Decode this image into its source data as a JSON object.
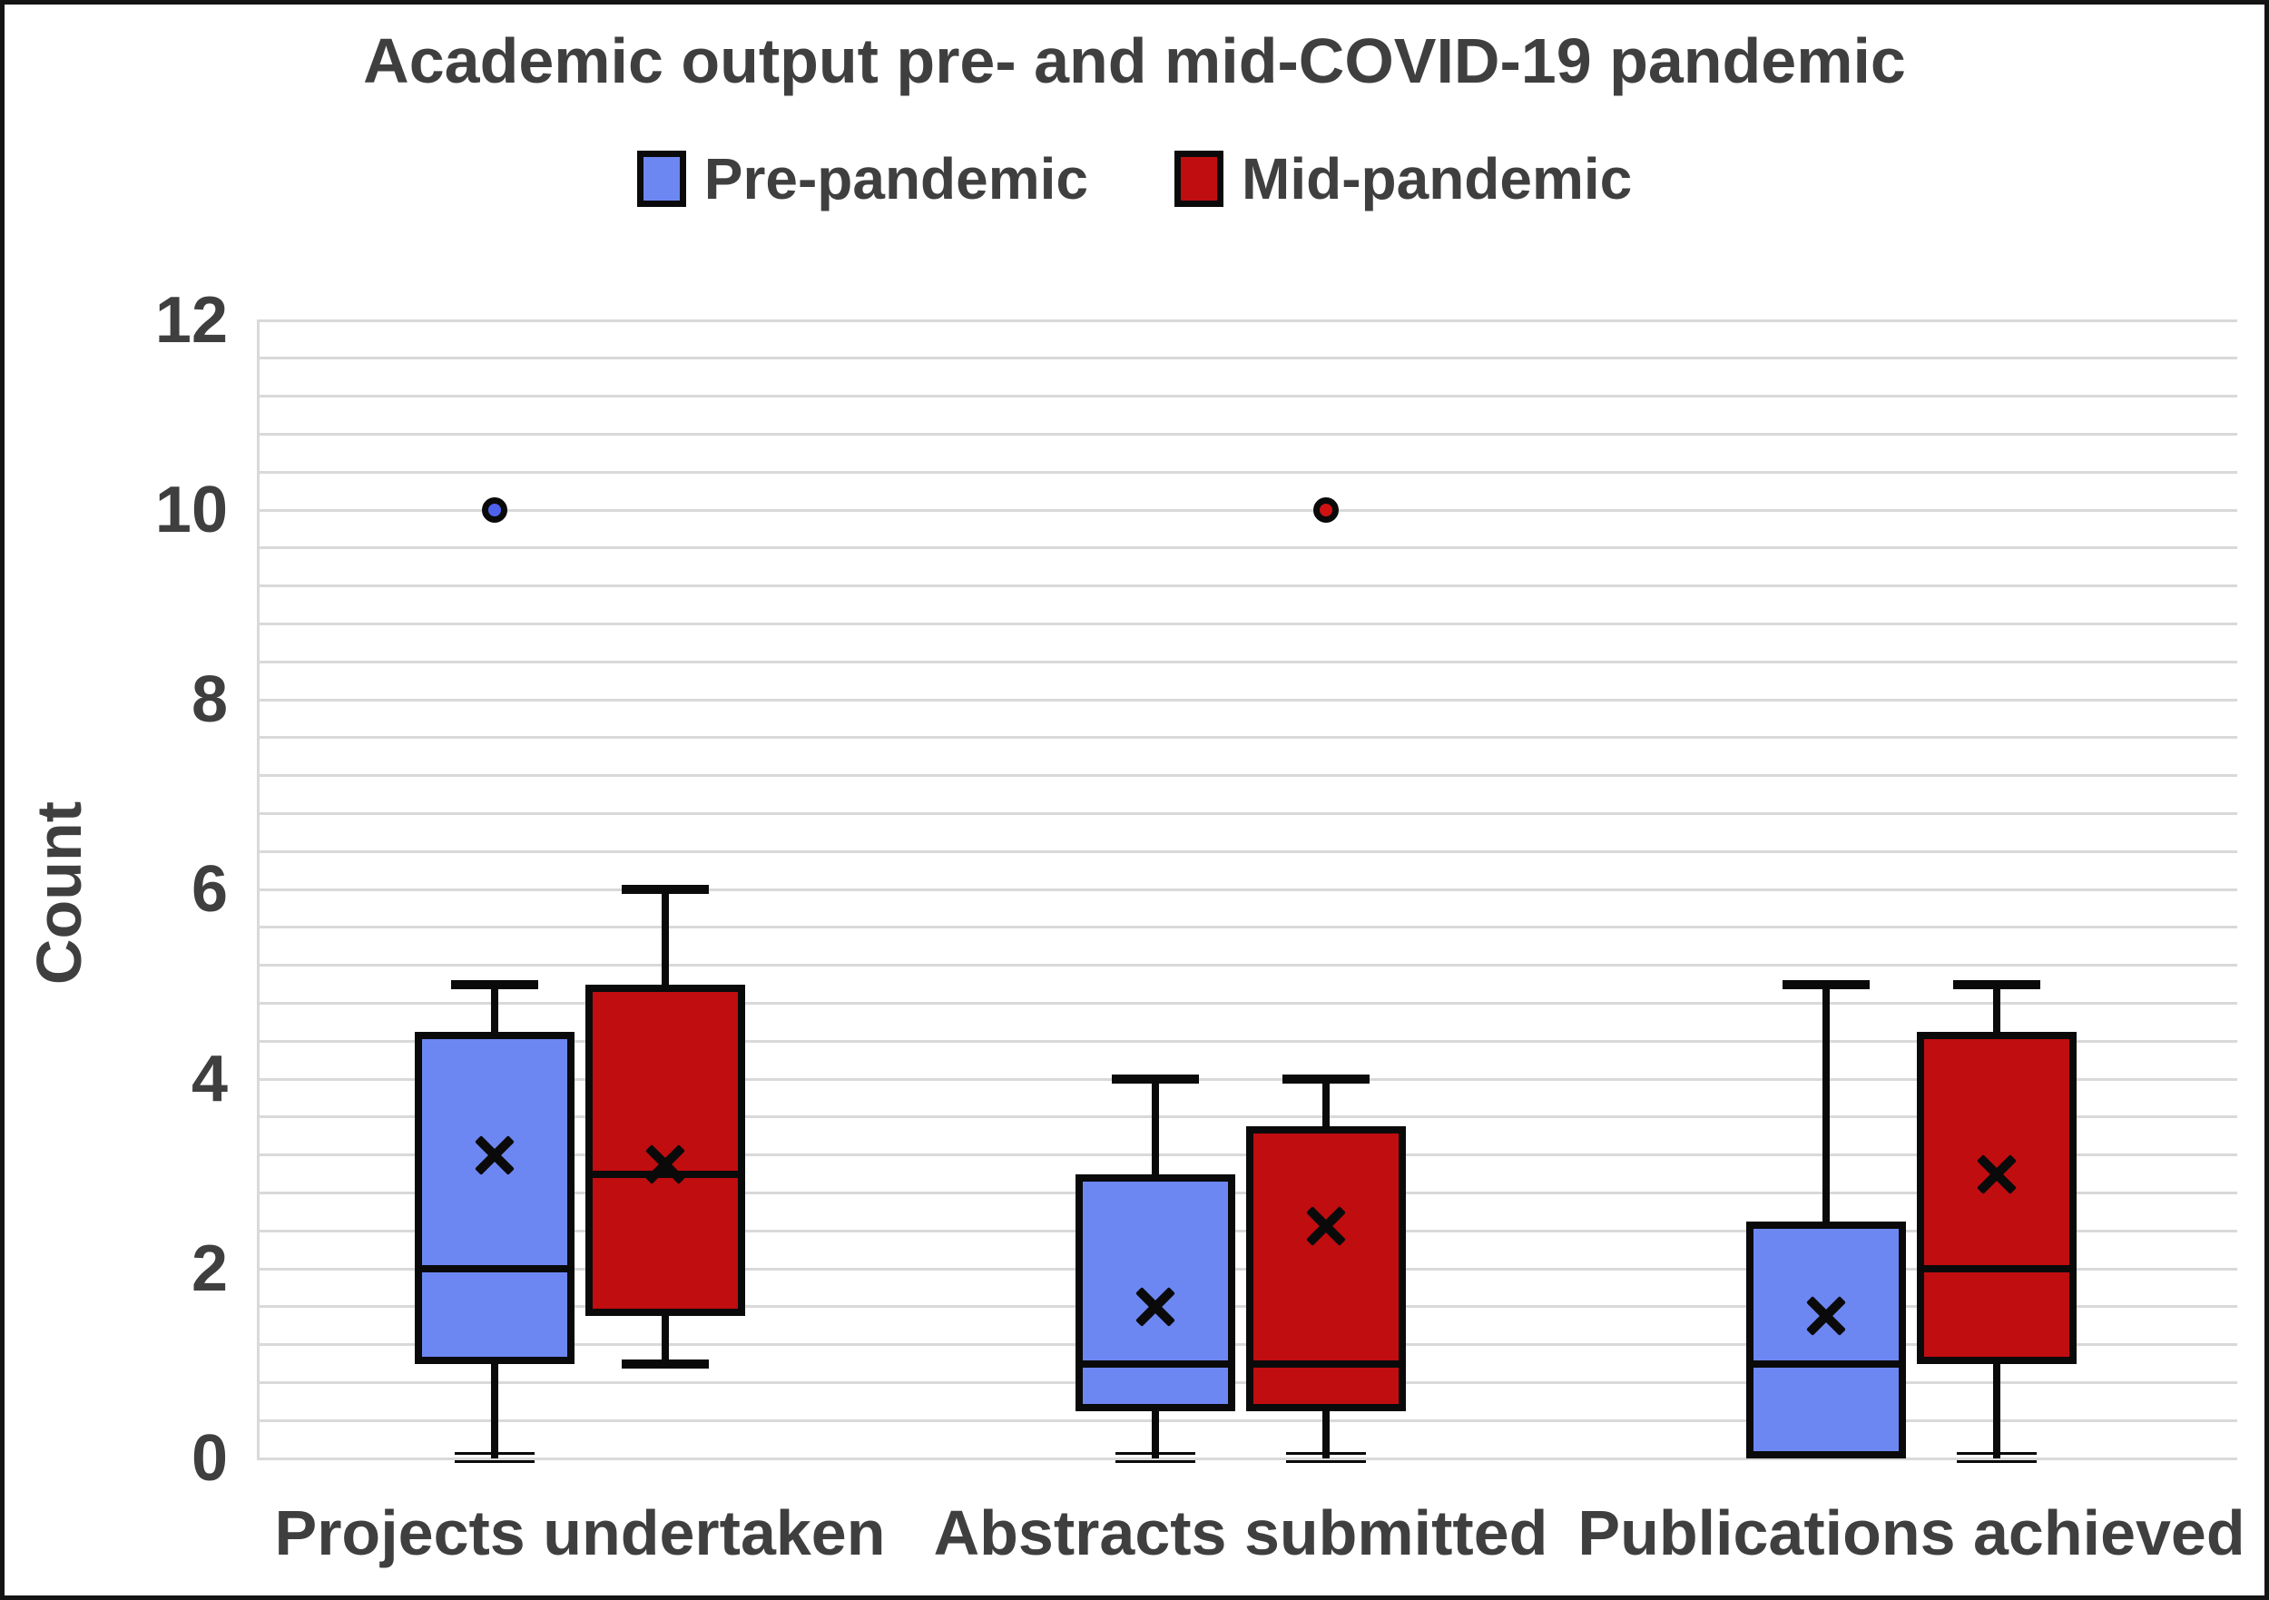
{
  "title": "Academic output pre- and mid-COVID-19 pandemic",
  "legend": [
    {
      "label": "Pre-pandemic",
      "color": "#6d87f2"
    },
    {
      "label": "Mid-pandemic",
      "color": "#c00d10"
    }
  ],
  "y_axis": {
    "label": "Count",
    "tick_values": [
      0,
      2,
      4,
      6,
      8,
      10,
      12
    ],
    "min": 0,
    "max": 12,
    "minor_gridline_step": 0.4,
    "gridline_color": "#d9d9d9"
  },
  "text_color": "#3f3f3f",
  "chart_data": {
    "type": "box",
    "title": "Academic output pre- and mid-COVID-19 pandemic",
    "ylabel": "Count",
    "ylim": [
      0,
      12
    ],
    "grid": "minor horizontal, step 0.4",
    "legend_position": "top center",
    "categories": [
      "Projects undertaken",
      "Abstracts submitted",
      "Publications achieved"
    ],
    "series": [
      {
        "name": "Pre-pandemic",
        "fill_color": "#6d87f2",
        "outlier_fill": "#4f62ee",
        "boxes": [
          {
            "category": "Projects undertaken",
            "min": 0,
            "q1": 1,
            "median": 2,
            "q3": 4.5,
            "max": 5,
            "mean": 3.2,
            "outliers": [
              10
            ]
          },
          {
            "category": "Abstracts submitted",
            "min": 0,
            "q1": 0.5,
            "median": 1,
            "q3": 3,
            "max": 4,
            "mean": 1.6,
            "outliers": []
          },
          {
            "category": "Publications achieved",
            "min": 0,
            "q1": 0,
            "median": 1,
            "q3": 2.5,
            "max": 5,
            "mean": 1.5,
            "outliers": []
          }
        ]
      },
      {
        "name": "Mid-pandemic",
        "fill_color": "#c00d10",
        "outlier_fill": "#d01212",
        "boxes": [
          {
            "category": "Projects undertaken",
            "min": 1,
            "q1": 1.5,
            "median": 3,
            "q3": 5,
            "max": 6,
            "mean": 3.1,
            "outliers": []
          },
          {
            "category": "Abstracts submitted",
            "min": 0,
            "q1": 0.5,
            "median": 1,
            "q3": 3.5,
            "max": 4,
            "mean": 2.45,
            "outliers": [
              10
            ]
          },
          {
            "category": "Publications achieved",
            "min": 0,
            "q1": 1,
            "median": 2,
            "q3": 4.5,
            "max": 5,
            "mean": 3.0,
            "outliers": []
          }
        ]
      }
    ]
  }
}
